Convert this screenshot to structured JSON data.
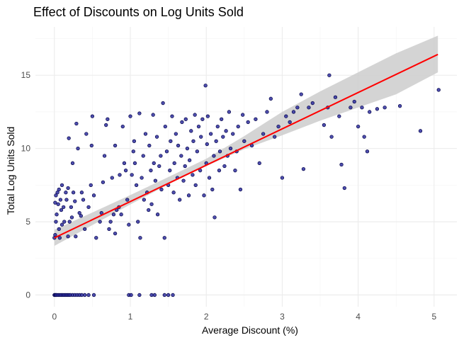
{
  "chart_data": {
    "type": "scatter",
    "title": "Effect of Discounts on Log Units Sold",
    "xlabel": "Average Discount (%)",
    "ylabel": "Total Log Units Sold",
    "xlim": [
      -0.25,
      5.3
    ],
    "ylim": [
      -0.8,
      18.3
    ],
    "x_ticks": [
      0,
      1,
      2,
      3,
      4,
      5
    ],
    "x_tick_labels": [
      "0",
      "1",
      "2",
      "3",
      "4",
      "5"
    ],
    "y_ticks": [
      0,
      5,
      10,
      15
    ],
    "y_tick_labels": [
      "0",
      "5",
      "10",
      "15"
    ],
    "grid": true,
    "legend": "none",
    "colors": {
      "point_fill": "#2f2fa0",
      "point_stroke": "#000044",
      "fit_line": "#ff0000",
      "confidence_band": "#cccccc"
    },
    "fit": {
      "method": "linear",
      "intercept": 3.9,
      "slope": 2.48,
      "ci_lower": [
        [
          0,
          3.35
        ],
        [
          0.5,
          4.77
        ],
        [
          1,
          6.18
        ],
        [
          1.5,
          7.55
        ],
        [
          2,
          8.8
        ],
        [
          2.5,
          9.95
        ],
        [
          3,
          10.9
        ],
        [
          3.5,
          11.9
        ],
        [
          4,
          12.8
        ],
        [
          4.5,
          13.7
        ],
        [
          5.05,
          15.2
        ]
      ],
      "ci_upper": [
        [
          0,
          4.45
        ],
        [
          0.5,
          5.63
        ],
        [
          1,
          6.82
        ],
        [
          1.5,
          8.05
        ],
        [
          2,
          9.3
        ],
        [
          2.5,
          10.85
        ],
        [
          3,
          12.5
        ],
        [
          3.5,
          13.9
        ],
        [
          4,
          15.2
        ],
        [
          4.5,
          16.5
        ],
        [
          5.05,
          17.7
        ]
      ]
    },
    "points": [
      [
        0,
        0
      ],
      [
        0.01,
        0
      ],
      [
        0.02,
        0
      ],
      [
        0.03,
        0
      ],
      [
        0.05,
        0
      ],
      [
        0.07,
        0
      ],
      [
        0.09,
        0
      ],
      [
        0.11,
        0
      ],
      [
        0.13,
        0
      ],
      [
        0.15,
        0
      ],
      [
        0.17,
        0
      ],
      [
        0.19,
        0
      ],
      [
        0.21,
        0
      ],
      [
        0.24,
        0
      ],
      [
        0.27,
        0
      ],
      [
        0.3,
        0
      ],
      [
        0.33,
        0
      ],
      [
        0.36,
        0
      ],
      [
        0.4,
        0
      ],
      [
        0.45,
        0
      ],
      [
        0.52,
        0
      ],
      [
        0.98,
        0
      ],
      [
        1.01,
        0
      ],
      [
        1.12,
        0
      ],
      [
        1.28,
        0
      ],
      [
        1.32,
        0
      ],
      [
        1.45,
        0
      ],
      [
        1.5,
        0
      ],
      [
        1.56,
        0
      ],
      [
        0,
        3.9
      ],
      [
        0.01,
        4.1
      ],
      [
        0.02,
        5.0
      ],
      [
        0.01,
        6.3
      ],
      [
        0.02,
        6.8
      ],
      [
        0.03,
        5.5
      ],
      [
        0.04,
        7.0
      ],
      [
        0.05,
        6.2
      ],
      [
        0.06,
        4.5
      ],
      [
        0.06,
        7.2
      ],
      [
        0.07,
        3.9
      ],
      [
        0.08,
        6.5
      ],
      [
        0.09,
        5.8
      ],
      [
        0.1,
        4.8
      ],
      [
        0.1,
        7.5
      ],
      [
        0.12,
        6.0
      ],
      [
        0.13,
        5.0
      ],
      [
        0.15,
        7.0
      ],
      [
        0.16,
        6.5
      ],
      [
        0.18,
        4.0
      ],
      [
        0.18,
        7.3
      ],
      [
        0.19,
        10.7
      ],
      [
        0.2,
        5.0
      ],
      [
        0.22,
        6.0
      ],
      [
        0.23,
        5.3
      ],
      [
        0.24,
        9.0
      ],
      [
        0.25,
        7.0
      ],
      [
        0.27,
        6.4
      ],
      [
        0.28,
        4.0
      ],
      [
        0.29,
        11.7
      ],
      [
        0.31,
        10.0
      ],
      [
        0.33,
        5.6
      ],
      [
        0.35,
        5.4
      ],
      [
        0.36,
        7.0
      ],
      [
        0.38,
        6.5
      ],
      [
        0.4,
        4.5
      ],
      [
        0.42,
        11.0
      ],
      [
        0.45,
        6.0
      ],
      [
        0.48,
        7.5
      ],
      [
        0.49,
        10.2
      ],
      [
        0.5,
        12.2
      ],
      [
        0.52,
        6.8
      ],
      [
        0.55,
        3.9
      ],
      [
        0.6,
        5.0
      ],
      [
        0.62,
        5.6
      ],
      [
        0.64,
        7.7
      ],
      [
        0.66,
        9.5
      ],
      [
        0.68,
        11.6
      ],
      [
        0.7,
        12.0
      ],
      [
        0.72,
        4.5
      ],
      [
        0.74,
        5.0
      ],
      [
        0.76,
        8.0
      ],
      [
        0.78,
        5.5
      ],
      [
        0.8,
        10.2
      ],
      [
        0.8,
        4.2
      ],
      [
        0.82,
        5.8
      ],
      [
        0.85,
        6.0
      ],
      [
        0.86,
        8.2
      ],
      [
        0.88,
        5.5
      ],
      [
        0.9,
        11.5
      ],
      [
        0.92,
        9.0
      ],
      [
        0.94,
        8.5
      ],
      [
        0.96,
        6.5
      ],
      [
        0.98,
        4.8
      ],
      [
        1.0,
        12.2
      ],
      [
        1.02,
        8.2
      ],
      [
        1.04,
        9.8
      ],
      [
        1.05,
        10.5
      ],
      [
        1.06,
        9.0
      ],
      [
        1.08,
        7.5
      ],
      [
        1.1,
        5.0
      ],
      [
        1.12,
        12.4
      ],
      [
        1.13,
        3.9
      ],
      [
        1.15,
        8.0
      ],
      [
        1.17,
        9.5
      ],
      [
        1.18,
        6.5
      ],
      [
        1.2,
        11.0
      ],
      [
        1.22,
        7.0
      ],
      [
        1.24,
        5.8
      ],
      [
        1.25,
        10.2
      ],
      [
        1.27,
        8.5
      ],
      [
        1.28,
        6.2
      ],
      [
        1.3,
        12.3
      ],
      [
        1.31,
        9.0
      ],
      [
        1.33,
        7.8
      ],
      [
        1.35,
        10.8
      ],
      [
        1.36,
        5.5
      ],
      [
        1.38,
        8.8
      ],
      [
        1.4,
        9.5
      ],
      [
        1.41,
        7.2
      ],
      [
        1.43,
        13.1
      ],
      [
        1.45,
        3.9
      ],
      [
        1.46,
        11.5
      ],
      [
        1.48,
        9.8
      ],
      [
        1.5,
        7.5
      ],
      [
        1.52,
        8.5
      ],
      [
        1.53,
        10.5
      ],
      [
        1.55,
        12.2
      ],
      [
        1.57,
        7.0
      ],
      [
        1.58,
        9.0
      ],
      [
        1.6,
        11.0
      ],
      [
        1.62,
        8.0
      ],
      [
        1.63,
        10.2
      ],
      [
        1.65,
        6.5
      ],
      [
        1.67,
        9.5
      ],
      [
        1.68,
        11.8
      ],
      [
        1.7,
        7.8
      ],
      [
        1.72,
        8.8
      ],
      [
        1.73,
        12.0
      ],
      [
        1.75,
        10.0
      ],
      [
        1.77,
        6.8
      ],
      [
        1.78,
        9.2
      ],
      [
        1.8,
        11.2
      ],
      [
        1.82,
        8.2
      ],
      [
        1.83,
        10.5
      ],
      [
        1.85,
        12.3
      ],
      [
        1.86,
        7.5
      ],
      [
        1.88,
        9.8
      ],
      [
        1.9,
        11.5
      ],
      [
        1.92,
        8.5
      ],
      [
        1.93,
        10.8
      ],
      [
        1.95,
        12.0
      ],
      [
        1.97,
        6.8
      ],
      [
        1.99,
        14.3
      ],
      [
        2.0,
        9.0
      ],
      [
        2.01,
        10.3
      ],
      [
        2.02,
        12.2
      ],
      [
        2.04,
        8.0
      ],
      [
        2.06,
        11.0
      ],
      [
        2.08,
        7.2
      ],
      [
        2.1,
        9.5
      ],
      [
        2.11,
        5.3
      ],
      [
        2.13,
        10.5
      ],
      [
        2.15,
        11.5
      ],
      [
        2.17,
        8.5
      ],
      [
        2.18,
        9.8
      ],
      [
        2.2,
        12.0
      ],
      [
        2.22,
        10.8
      ],
      [
        2.24,
        8.8
      ],
      [
        2.26,
        11.2
      ],
      [
        2.28,
        9.5
      ],
      [
        2.3,
        12.5
      ],
      [
        2.32,
        10.0
      ],
      [
        2.35,
        11.0
      ],
      [
        2.38,
        8.5
      ],
      [
        2.4,
        9.8
      ],
      [
        2.42,
        11.5
      ],
      [
        2.45,
        7.2
      ],
      [
        2.48,
        12.3
      ],
      [
        2.5,
        10.5
      ],
      [
        2.55,
        11.8
      ],
      [
        2.6,
        10.2
      ],
      [
        2.65,
        12.0
      ],
      [
        2.7,
        9.0
      ],
      [
        2.75,
        11.0
      ],
      [
        2.8,
        12.5
      ],
      [
        2.85,
        13.4
      ],
      [
        2.9,
        10.8
      ],
      [
        2.95,
        11.5
      ],
      [
        3.0,
        8.0
      ],
      [
        3.05,
        12.2
      ],
      [
        3.1,
        11.8
      ],
      [
        3.15,
        12.5
      ],
      [
        3.2,
        12.8
      ],
      [
        3.25,
        13.7
      ],
      [
        3.28,
        8.6
      ],
      [
        3.35,
        12.8
      ],
      [
        3.4,
        13.1
      ],
      [
        3.55,
        11.6
      ],
      [
        3.6,
        12.8
      ],
      [
        3.62,
        15.0
      ],
      [
        3.65,
        10.8
      ],
      [
        3.7,
        13.5
      ],
      [
        3.75,
        12.2
      ],
      [
        3.78,
        8.9
      ],
      [
        3.82,
        7.3
      ],
      [
        3.9,
        12.8
      ],
      [
        3.95,
        13.2
      ],
      [
        4.0,
        11.5
      ],
      [
        4.05,
        12.8
      ],
      [
        4.08,
        10.8
      ],
      [
        4.12,
        9.8
      ],
      [
        4.15,
        12.5
      ],
      [
        4.25,
        12.7
      ],
      [
        4.35,
        12.8
      ],
      [
        4.55,
        12.9
      ],
      [
        4.82,
        11.2
      ],
      [
        5.06,
        14.0
      ]
    ]
  }
}
